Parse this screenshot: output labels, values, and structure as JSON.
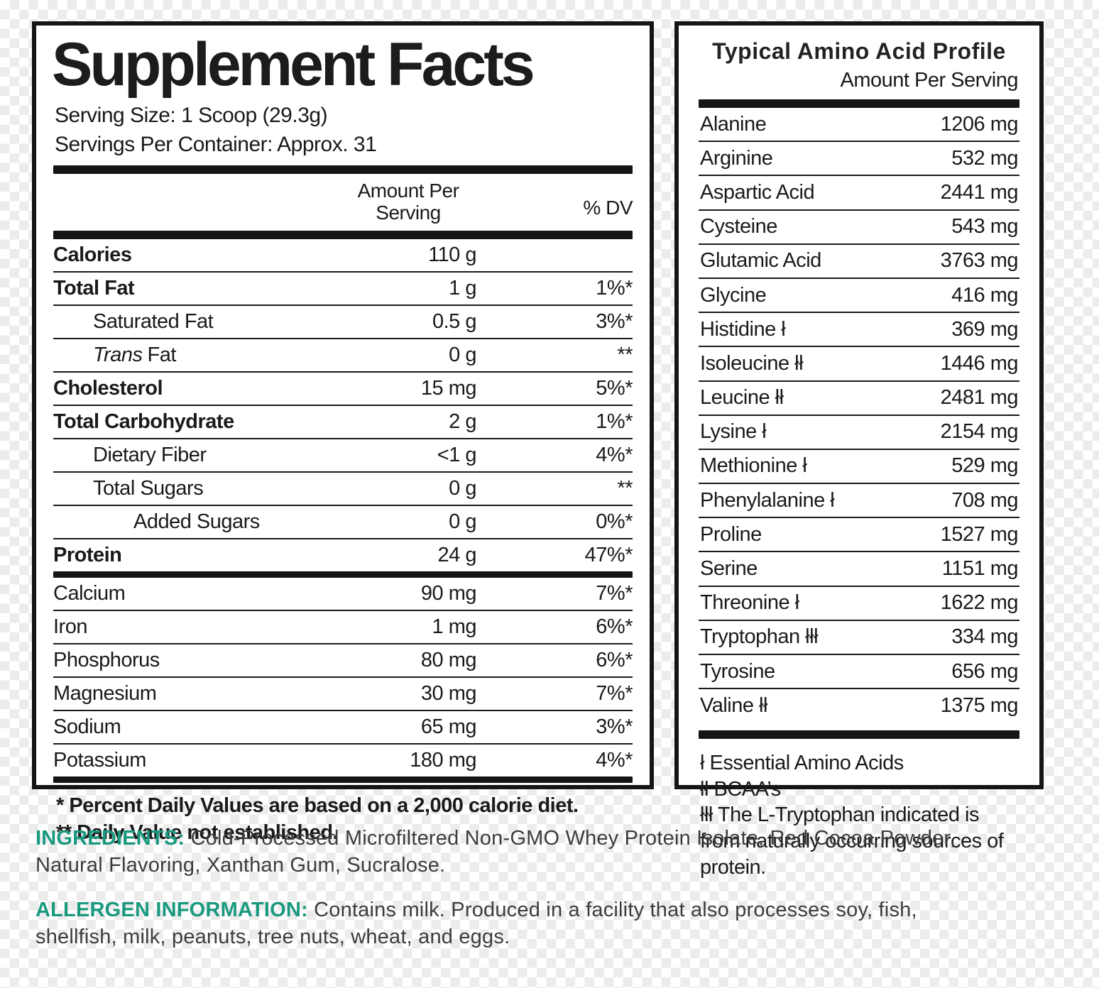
{
  "colors": {
    "accent_teal": "#1A997F",
    "text_black": "#1A1A1A",
    "panel_border": "#151515"
  },
  "supplement_facts": {
    "title": "Supplement Facts",
    "serving_size": "Serving Size: 1 Scoop (29.3g)",
    "servings_per_container": "Servings Per Container: Approx. 31",
    "header": {
      "amount_col_line1": "Amount Per",
      "amount_col_line2": "Serving",
      "dv_col": "% DV"
    },
    "rows": [
      {
        "name": "Calories",
        "amount": "110 g",
        "dv": ""
      },
      {
        "name": "Total Fat",
        "amount": "1 g",
        "dv": "1%*"
      },
      {
        "name": "Saturated Fat",
        "amount": "0.5 g",
        "dv": "3%*"
      },
      {
        "name_italic": "Trans",
        "name": "Fat",
        "amount": "0 g",
        "dv": "**"
      },
      {
        "name": "Cholesterol",
        "amount": "15 mg",
        "dv": "5%*"
      },
      {
        "name": "Total Carbohydrate",
        "amount": "2 g",
        "dv": "1%*"
      },
      {
        "name": "Dietary Fiber",
        "amount": "<1 g",
        "dv": "4%*"
      },
      {
        "name": "Total Sugars",
        "amount": "0 g",
        "dv": "**"
      },
      {
        "name": "Added Sugars",
        "amount": "0 g",
        "dv": "0%*"
      },
      {
        "name": "Protein",
        "amount": "24 g",
        "dv": "47%*"
      },
      {
        "name": "Calcium",
        "amount": "90 mg",
        "dv": "7%*"
      },
      {
        "name": "Iron",
        "amount": "1 mg",
        "dv": "6%*"
      },
      {
        "name": "Phosphorus",
        "amount": "80 mg",
        "dv": "6%*"
      },
      {
        "name": "Magnesium",
        "amount": "30 mg",
        "dv": "7%*"
      },
      {
        "name": "Sodium",
        "amount": "65 mg",
        "dv": "3%*"
      },
      {
        "name": "Potassium",
        "amount": "180 mg",
        "dv": "4%*"
      }
    ],
    "footnotes": [
      "* Percent Daily Values are based on a 2,000 calorie diet.",
      "** Daily Value not established."
    ]
  },
  "amino_profile": {
    "title": "Typical Amino Acid Profile",
    "subtitle": "Amount Per Serving",
    "rows": [
      {
        "name": "Alanine",
        "amount": "1206 mg"
      },
      {
        "name": "Arginine",
        "amount": "532 mg"
      },
      {
        "name": "Aspartic Acid",
        "amount": "2441 mg"
      },
      {
        "name": "Cysteine",
        "amount": "543 mg"
      },
      {
        "name": "Glutamic Acid",
        "amount": "3763 mg"
      },
      {
        "name": "Glycine",
        "amount": "416 mg"
      },
      {
        "name": "Histidine ł",
        "amount": "369 mg"
      },
      {
        "name": "Isoleucine łł",
        "amount": "1446 mg"
      },
      {
        "name": "Leucine łł",
        "amount": "2481 mg"
      },
      {
        "name": "Lysine ł",
        "amount": "2154 mg"
      },
      {
        "name": "Methionine ł",
        "amount": "529 mg"
      },
      {
        "name": "Phenylalanine ł",
        "amount": "708 mg"
      },
      {
        "name": "Proline",
        "amount": "1527 mg"
      },
      {
        "name": "Serine",
        "amount": "1151 mg"
      },
      {
        "name": "Threonine ł",
        "amount": "1622 mg"
      },
      {
        "name": "Tryptophan łłł",
        "amount": "334 mg"
      },
      {
        "name": "Tyrosine",
        "amount": "656 mg"
      },
      {
        "name": "Valine łł",
        "amount": "1375 mg"
      }
    ],
    "legend": [
      "ł Essential Amino Acids",
      "łł BCAA’s",
      "łłł The L-Tryptophan indicated is from naturally occurring sources of protein."
    ]
  },
  "ingredients": {
    "label": "INGREDIENTS:",
    "text": "Cold-Processed Microfiltered Non-GMO Whey Protein Isolate, Red Cocoa Powder, Natural Flavoring, Xanthan Gum, Sucralose."
  },
  "allergen": {
    "label": "ALLERGEN INFORMATION:",
    "text": "Contains milk. Produced in a facility that also processes soy, fish, shellfish, milk, peanuts, tree nuts, wheat, and eggs."
  }
}
